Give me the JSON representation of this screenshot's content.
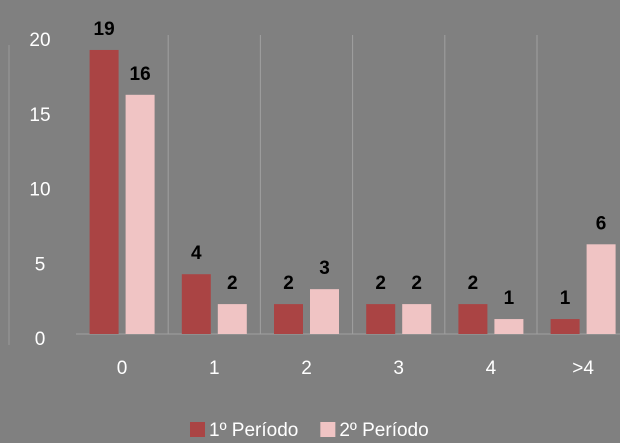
{
  "chart_data": {
    "type": "bar",
    "categories": [
      "0",
      "1",
      "2",
      "3",
      "4",
      ">4"
    ],
    "series": [
      {
        "name": "1º Período",
        "color": "#aa4444",
        "values": [
          19,
          4,
          2,
          2,
          2,
          1
        ]
      },
      {
        "name": "2º Período",
        "color": "#f0c4c4",
        "values": [
          16,
          2,
          3,
          2,
          1,
          6
        ]
      }
    ],
    "ylim": [
      0,
      20
    ],
    "yticks": [
      0,
      5,
      10,
      15,
      20
    ],
    "data_labels": true,
    "legend": "bottom"
  }
}
